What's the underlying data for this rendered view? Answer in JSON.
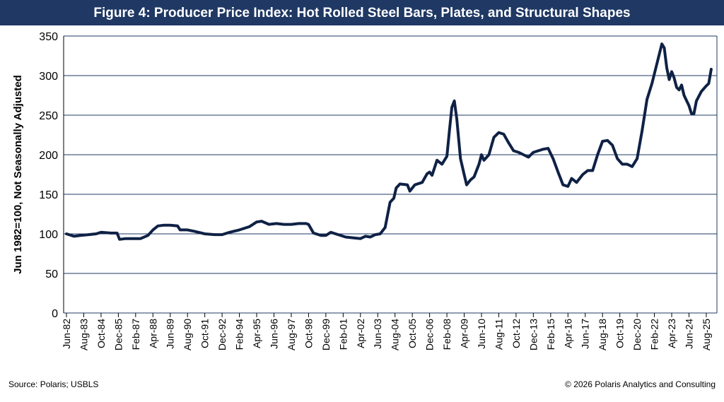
{
  "chart_data": {
    "type": "line",
    "title": "Figure 4: Producer Price Index: Hot Rolled Steel Bars, Plates, and Structural Shapes",
    "ylabel": "Jun 1982=100, Not Seasonally Adjusted",
    "source": "Source: Polaris; USBLS",
    "copyright": "© 2026 Polaris Analytics and Consulting",
    "color": "#0f2145",
    "grid": true,
    "ylim": [
      0,
      350
    ],
    "yticks": [
      0,
      50,
      100,
      150,
      200,
      250,
      300,
      350
    ],
    "xticks": [
      "Jun-82",
      "Aug-83",
      "Oct-84",
      "Dec-85",
      "Feb-87",
      "Apr-88",
      "Jun-89",
      "Aug-90",
      "Oct-91",
      "Dec-92",
      "Feb-94",
      "Apr-95",
      "Jun-96",
      "Aug-97",
      "Oct-98",
      "Dec-99",
      "Feb-01",
      "Apr-02",
      "Jun-03",
      "Aug-04",
      "Oct-05",
      "Dec-06",
      "Feb-08",
      "Apr-09",
      "Jun-10",
      "Aug-11",
      "Oct-12",
      "Dec-13",
      "Feb-15",
      "Apr-16",
      "Jun-17",
      "Aug-18",
      "Oct-19",
      "Dec-20",
      "Feb-22",
      "Apr-23",
      "Jun-24",
      "Aug-25"
    ],
    "x": [
      "Jun-82",
      "Dec-82",
      "Jun-83",
      "Dec-83",
      "Jun-84",
      "Oct-84",
      "Jun-85",
      "Nov-85",
      "Jan-86",
      "Jun-86",
      "Jan-87",
      "Jun-87",
      "Dec-87",
      "Apr-88",
      "Aug-88",
      "Jan-89",
      "Jun-89",
      "Dec-89",
      "Feb-90",
      "Aug-90",
      "Feb-91",
      "Oct-91",
      "Jun-92",
      "Dec-92",
      "Jun-93",
      "Feb-94",
      "Oct-94",
      "Apr-95",
      "Aug-95",
      "Feb-96",
      "Aug-96",
      "Feb-97",
      "Aug-97",
      "Feb-98",
      "Aug-98",
      "Oct-98",
      "Feb-99",
      "Aug-99",
      "Dec-99",
      "Apr-00",
      "Oct-00",
      "Apr-01",
      "Oct-01",
      "Apr-02",
      "Aug-02",
      "Dec-02",
      "Apr-03",
      "Aug-03",
      "Dec-03",
      "Apr-04",
      "Jul-04",
      "Sep-04",
      "Dec-04",
      "Jun-05",
      "Aug-05",
      "Dec-05",
      "Jun-06",
      "Oct-06",
      "Dec-06",
      "Feb-07",
      "Jun-07",
      "Oct-07",
      "Feb-08",
      "Apr-08",
      "Jun-08",
      "Aug-08",
      "Oct-08",
      "Jan-09",
      "Apr-09",
      "Jun-09",
      "Sep-09",
      "Dec-09",
      "Apr-10",
      "Jun-10",
      "Aug-10",
      "Dec-10",
      "Apr-11",
      "Aug-11",
      "Dec-11",
      "Apr-12",
      "Aug-12",
      "Dec-12",
      "Apr-13",
      "Aug-13",
      "Dec-13",
      "Apr-14",
      "Aug-14",
      "Dec-14",
      "Apr-15",
      "Aug-15",
      "Dec-15",
      "Apr-16",
      "Jul-16",
      "Nov-16",
      "Apr-17",
      "Aug-17",
      "Dec-17",
      "Apr-18",
      "Aug-18",
      "Dec-18",
      "Apr-19",
      "Aug-19",
      "Dec-19",
      "Apr-20",
      "Aug-20",
      "Dec-20",
      "Apr-21",
      "Aug-21",
      "Dec-21",
      "Apr-22",
      "Aug-22",
      "Oct-22",
      "Dec-22",
      "Feb-23",
      "Apr-23",
      "Jun-23",
      "Aug-23",
      "Oct-23",
      "Dec-23",
      "Feb-24",
      "Jun-24",
      "Aug-24",
      "Oct-24",
      "Dec-24",
      "Apr-25",
      "Aug-25",
      "Oct-25",
      "Dec-25"
    ],
    "values": [
      100,
      97,
      98,
      99,
      100,
      102,
      101,
      101,
      93,
      94,
      94,
      94,
      98,
      105,
      110,
      111,
      111,
      110,
      105,
      105,
      103,
      100,
      99,
      99,
      102,
      105,
      109,
      115,
      116,
      112,
      113,
      112,
      112,
      113,
      113,
      112,
      101,
      98,
      98,
      102,
      99,
      96,
      95,
      94,
      97,
      96,
      99,
      100,
      108,
      140,
      145,
      158,
      163,
      162,
      154,
      162,
      165,
      176,
      178,
      174,
      193,
      188,
      198,
      230,
      260,
      268,
      245,
      195,
      175,
      162,
      168,
      172,
      188,
      200,
      193,
      200,
      222,
      228,
      226,
      215,
      205,
      203,
      200,
      197,
      203,
      205,
      207,
      208,
      195,
      178,
      162,
      160,
      170,
      165,
      175,
      180,
      180,
      200,
      217,
      218,
      212,
      195,
      188,
      188,
      185,
      195,
      230,
      270,
      290,
      315,
      340,
      335,
      310,
      295,
      305,
      297,
      285,
      282,
      288,
      275,
      262,
      252,
      252,
      268,
      280,
      287,
      290,
      308
    ]
  }
}
